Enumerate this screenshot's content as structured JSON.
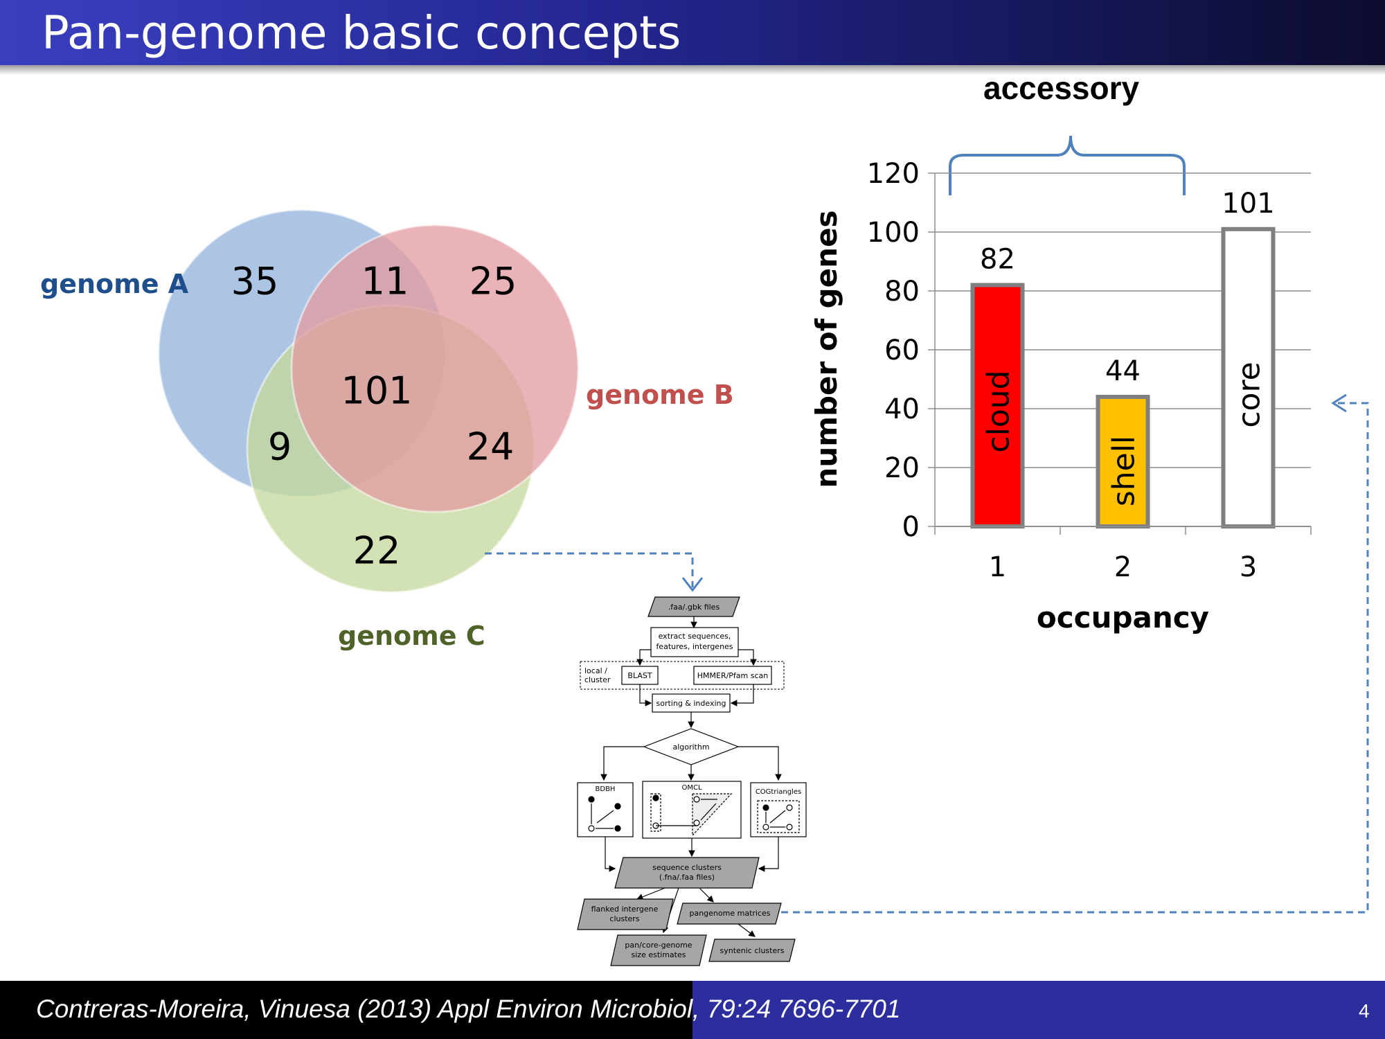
{
  "header": {
    "title": "Pan-genome basic concepts"
  },
  "venn": {
    "genome_a_label": "genome A",
    "genome_b_label": "genome B",
    "genome_c_label": "genome C",
    "only_a": "35",
    "a_b": "11",
    "only_b": "25",
    "all": "101",
    "a_c": "9",
    "b_c": "24",
    "only_c": "22",
    "colors": {
      "a": "#92b1db",
      "b": "#e39a9f",
      "c": "#c3d89b",
      "label_a": "#1f4e8c",
      "label_b": "#c0504d",
      "label_c": "#4f6228"
    }
  },
  "flowchart": {
    "input": ".faa/.gbk files",
    "extract": [
      "extract sequences,",
      "features, intergenes"
    ],
    "local": [
      "local /",
      "cluster"
    ],
    "blast": "BLAST",
    "hmmer": "HMMER/Pfam scan",
    "sorting": "sorting & indexing",
    "algorithm": "algorithm",
    "bdbh": "BDBH",
    "omcl": "OMCL",
    "cog": "COGtriangles",
    "clusters": [
      "sequence clusters",
      "(.fna/.faa files)"
    ],
    "flanked": [
      "flanked intergene",
      "clusters"
    ],
    "matrices": "pangenome matrices",
    "size": [
      "pan/core-genome",
      "size estimates"
    ],
    "syntenic": "syntenic clusters"
  },
  "accessory_label": "accessory",
  "chart_data": {
    "type": "bar",
    "categories": [
      "1",
      "2",
      "3"
    ],
    "values": [
      82,
      44,
      101
    ],
    "bar_labels": [
      "cloud",
      "shell",
      "core"
    ],
    "colors": [
      "#ff0000",
      "#ffc000",
      "#ffffff"
    ],
    "xlabel": "occupancy",
    "ylabel": "number of genes",
    "ylim": [
      0,
      120
    ],
    "yticks": [
      0,
      20,
      40,
      60,
      80,
      100,
      120
    ],
    "grid": true
  },
  "footer": {
    "citation": "Contreras-Moreira, Vinuesa (2013) Appl Environ Microbiol, 79:24 7696-7701",
    "page": "4"
  }
}
